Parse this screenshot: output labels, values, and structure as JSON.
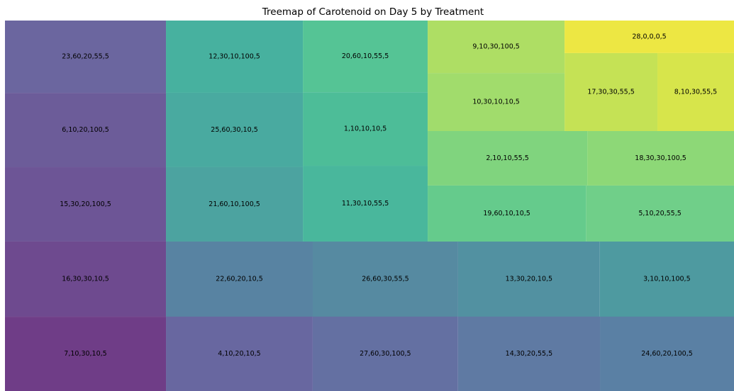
{
  "chart_data": {
    "type": "treemap",
    "title": "Treemap of Carotenoid on Day 5 by Treatment",
    "labels": [
      "7,10,30,10,5",
      "16,30,30,10,5",
      "15,30,20,100,5",
      "6,10,20,100,5",
      "23,60,20,55,5",
      "4,10,20,10,5",
      "27,60,30,100,5",
      "14,30,20,55,5",
      "24,60,20,100,5",
      "22,60,20,10,5",
      "26,60,30,55,5",
      "13,30,20,10,5",
      "3,10,10,100,5",
      "21,60,10,100,5",
      "25,60,30,10,5",
      "12,30,10,100,5",
      "11,30,10,55,5",
      "1,10,10,10,5",
      "20,60,10,55,5",
      "19,60,10,10,5",
      "5,10,20,55,5",
      "2,10,10,55,5",
      "18,30,30,100,5",
      "10,30,10,10,5",
      "9,10,30,100,5",
      "17,30,30,55,5",
      "8,10,30,55,5",
      "28,0,0,0,5"
    ],
    "values": [
      443,
      448,
      443,
      443,
      431,
      404,
      400,
      391,
      369,
      408,
      404,
      394,
      373,
      377,
      377,
      366,
      350,
      340,
      331,
      328,
      307,
      322,
      296,
      294,
      266,
      268,
      221,
      204
    ],
    "colors": [
      "#6f3d87",
      "#6e4a8f",
      "#6d5596",
      "#6c5c99",
      "#6b669f",
      "#6867a0",
      "#6470a2",
      "#5f7aa3",
      "#5a80a4",
      "#5883a2",
      "#568aa1",
      "#5291a1",
      "#4e9aa0",
      "#4ca3a0",
      "#49aaa0",
      "#47b19f",
      "#49b79c",
      "#4dbd98",
      "#55c495",
      "#65cb8c",
      "#70cf89",
      "#80d47e",
      "#8dd877",
      "#a1dc6c",
      "#aede64",
      "#c5e255",
      "#d7e54b",
      "#ede743"
    ]
  }
}
